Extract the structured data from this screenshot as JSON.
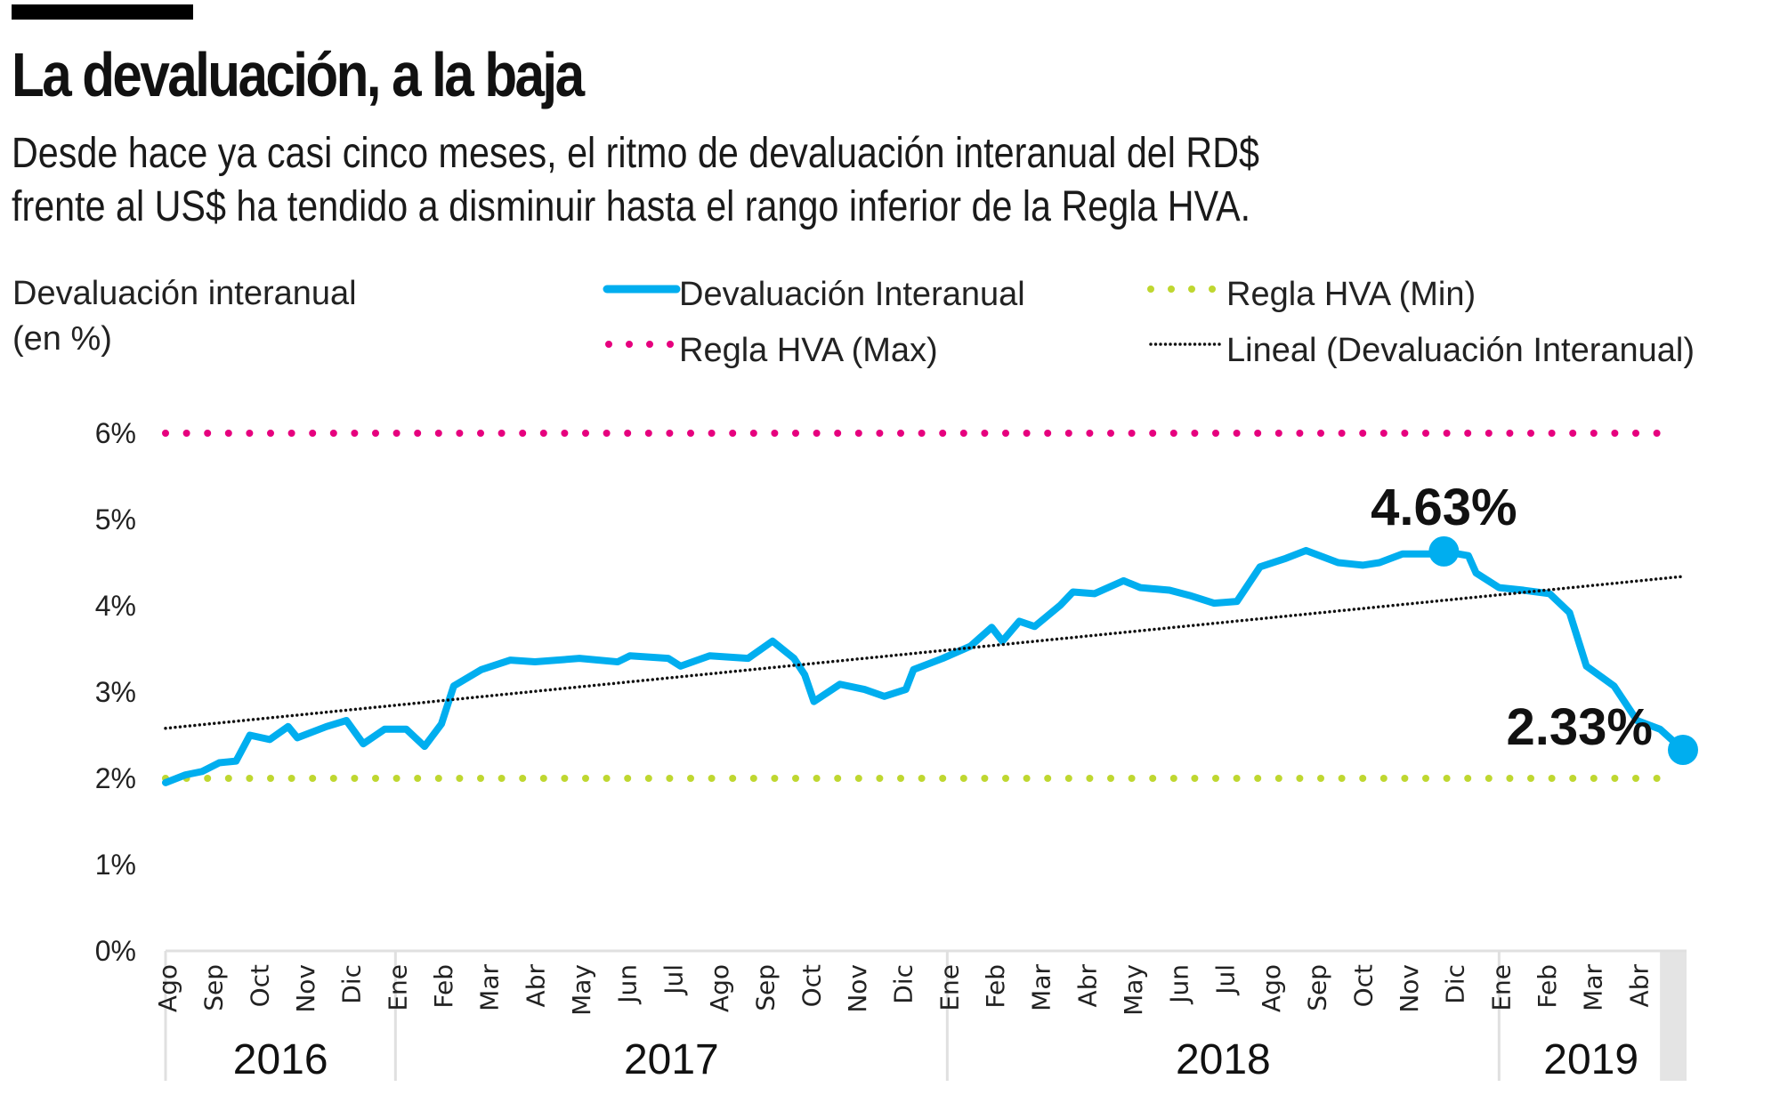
{
  "header": {
    "title": "La devaluación, a la baja",
    "subtitle_line1": "Desde hace ya casi cinco meses, el ritmo de devaluación interanual del RD$",
    "subtitle_line2": "frente al US$ ha tendido a disminuir hasta el rango inferior de la Regla HVA."
  },
  "chart_data": {
    "type": "line",
    "ylabel_line1": "Devaluación interanual",
    "ylabel_line2": "(en %)",
    "ylim": [
      0,
      6
    ],
    "yticks": [
      "0%",
      "1%",
      "2%",
      "3%",
      "4%",
      "5%",
      "6%"
    ],
    "months": [
      "Ago",
      "Sep",
      "Oct",
      "Nov",
      "Dic",
      "Ene",
      "Feb",
      "Mar",
      "Abr",
      "May",
      "Jun",
      "Jul",
      "Ago",
      "Sep",
      "Oct",
      "Nov",
      "Dic",
      "Ene",
      "Feb",
      "Mar",
      "Abr",
      "May",
      "Jun",
      "Jul",
      "Ago",
      "Sep",
      "Oct",
      "Nov",
      "Dic",
      "Ene",
      "Feb",
      "Mar",
      "Abr"
    ],
    "years": [
      "2016",
      "2017",
      "2018",
      "2019"
    ],
    "grid": false,
    "legend_placement": "top",
    "legend": {
      "series": "Devaluación Interanual",
      "min": "Regla HVA (Min)",
      "max": "Regla HVA (Max)",
      "trend": "Lineal (Devaluación Interanual)"
    },
    "colors": {
      "series": "#00AEEF",
      "max": "#E6007E",
      "min": "#BFD730",
      "trend": "#111111",
      "axis": "#E0E0E0",
      "shade": "#E4E4E4"
    },
    "regla_hva_max": 6,
    "regla_hva_min": 2,
    "trend": {
      "start": 2.58,
      "end": 4.34
    },
    "series": [
      {
        "name": "Devaluación Interanual",
        "points": [
          [
            "2016-08-01",
            1.95
          ],
          [
            "2016-08-14",
            2.04
          ],
          [
            "2016-08-25",
            2.08
          ],
          [
            "2016-09-06",
            2.18
          ],
          [
            "2016-09-17",
            2.2
          ],
          [
            "2016-09-26",
            2.5
          ],
          [
            "2016-10-09",
            2.45
          ],
          [
            "2016-10-21",
            2.6
          ],
          [
            "2016-10-27",
            2.47
          ],
          [
            "2016-11-16",
            2.6
          ],
          [
            "2016-11-29",
            2.67
          ],
          [
            "2016-12-10",
            2.4
          ],
          [
            "2016-12-24",
            2.57
          ],
          [
            "2017-01-08",
            2.57
          ],
          [
            "2017-01-20",
            2.37
          ],
          [
            "2017-01-31",
            2.63
          ],
          [
            "2017-02-09",
            3.07
          ],
          [
            "2017-02-27",
            3.26
          ],
          [
            "2017-03-16",
            3.37
          ],
          [
            "2017-04-02",
            3.35
          ],
          [
            "2017-05-01",
            3.39
          ],
          [
            "2017-05-26",
            3.35
          ],
          [
            "2017-06-04",
            3.42
          ],
          [
            "2017-06-29",
            3.39
          ],
          [
            "2017-07-07",
            3.3
          ],
          [
            "2017-07-26",
            3.42
          ],
          [
            "2017-08-21",
            3.39
          ],
          [
            "2017-09-07",
            3.59
          ],
          [
            "2017-09-21",
            3.39
          ],
          [
            "2017-09-28",
            3.2
          ],
          [
            "2017-10-04",
            2.89
          ],
          [
            "2017-10-21",
            3.09
          ],
          [
            "2017-11-07",
            3.03
          ],
          [
            "2017-11-20",
            2.95
          ],
          [
            "2017-12-04",
            3.03
          ],
          [
            "2017-12-09",
            3.26
          ],
          [
            "2017-12-28",
            3.39
          ],
          [
            "2018-01-16",
            3.53
          ],
          [
            "2018-01-30",
            3.75
          ],
          [
            "2018-02-07",
            3.59
          ],
          [
            "2018-02-18",
            3.82
          ],
          [
            "2018-02-28",
            3.76
          ],
          [
            "2018-03-15",
            4.01
          ],
          [
            "2018-03-23",
            4.16
          ],
          [
            "2018-04-07",
            4.14
          ],
          [
            "2018-04-26",
            4.29
          ],
          [
            "2018-05-07",
            4.21
          ],
          [
            "2018-05-26",
            4.18
          ],
          [
            "2018-06-09",
            4.12
          ],
          [
            "2018-06-25",
            4.03
          ],
          [
            "2018-07-10",
            4.05
          ],
          [
            "2018-07-25",
            4.45
          ],
          [
            "2018-08-12",
            4.55
          ],
          [
            "2018-08-25",
            4.64
          ],
          [
            "2018-09-16",
            4.5
          ],
          [
            "2018-10-02",
            4.47
          ],
          [
            "2018-10-13",
            4.5
          ],
          [
            "2018-10-28",
            4.6
          ],
          [
            "2018-11-16",
            4.6
          ],
          [
            "2018-11-25",
            4.63
          ],
          [
            "2018-12-11",
            4.58
          ],
          [
            "2018-12-16",
            4.38
          ],
          [
            "2019-01-01",
            4.21
          ],
          [
            "2019-01-17",
            4.18
          ],
          [
            "2019-02-04",
            4.14
          ],
          [
            "2019-02-17",
            3.92
          ],
          [
            "2019-02-28",
            3.3
          ],
          [
            "2019-03-16",
            3.07
          ],
          [
            "2019-03-31",
            2.67
          ],
          [
            "2019-04-16",
            2.57
          ],
          [
            "2019-05-01",
            2.33
          ]
        ]
      }
    ],
    "annotations": [
      {
        "label": "4.63%",
        "date": "2018-11-25",
        "value": 4.63
      },
      {
        "label": "2.33%",
        "date": "2019-05-01",
        "value": 2.33
      }
    ]
  }
}
